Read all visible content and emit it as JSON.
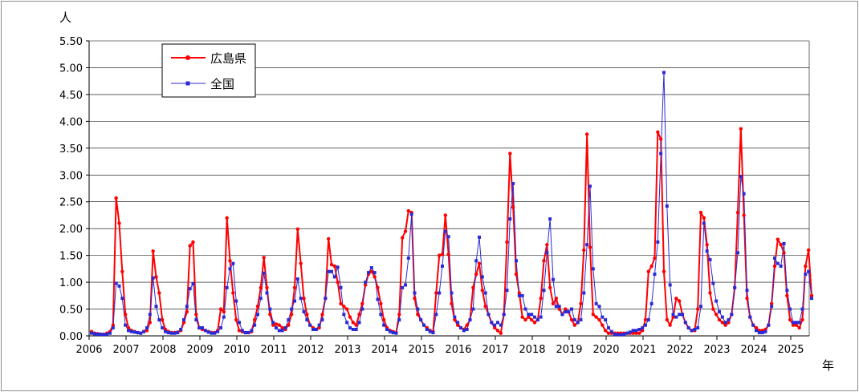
{
  "chart_data": {
    "type": "line",
    "title": "",
    "y_unit": "人",
    "x_unit": "年",
    "ylim": [
      0,
      5.5
    ],
    "y_ticks": [
      "0.00",
      "0.50",
      "1.00",
      "1.50",
      "2.00",
      "2.50",
      "3.00",
      "3.50",
      "4.00",
      "4.50",
      "5.00",
      "5.50"
    ],
    "x_ticks": [
      "2006",
      "2007",
      "2008",
      "2009",
      "2010",
      "2011",
      "2012",
      "2013",
      "2014",
      "2015",
      "2016",
      "2017",
      "2018",
      "2019",
      "2020",
      "2021",
      "2022",
      "2023",
      "2024",
      "2025"
    ],
    "x_start": "2006-01",
    "grid": true,
    "legend_position": "top-left",
    "colors": {
      "hiroshima": "#ff0000",
      "national": "#2b2bd6"
    },
    "series": [
      {
        "name": "広島県",
        "values": [
          0.08,
          0.05,
          0.04,
          0.03,
          0.03,
          0.05,
          0.08,
          0.2,
          2.57,
          2.1,
          1.2,
          0.4,
          0.15,
          0.1,
          0.08,
          0.06,
          0.05,
          0.08,
          0.1,
          0.25,
          1.58,
          1.1,
          0.8,
          0.3,
          0.12,
          0.08,
          0.06,
          0.06,
          0.07,
          0.1,
          0.25,
          0.45,
          1.68,
          1.75,
          0.4,
          0.15,
          0.12,
          0.1,
          0.08,
          0.06,
          0.06,
          0.1,
          0.5,
          0.45,
          2.2,
          1.4,
          0.8,
          0.3,
          0.1,
          0.08,
          0.06,
          0.06,
          0.08,
          0.3,
          0.55,
          0.9,
          1.46,
          0.9,
          0.4,
          0.2,
          0.22,
          0.2,
          0.15,
          0.12,
          0.2,
          0.4,
          0.9,
          1.99,
          1.35,
          0.7,
          0.4,
          0.2,
          0.15,
          0.12,
          0.15,
          0.4,
          0.7,
          1.81,
          1.33,
          1.3,
          1.0,
          0.6,
          0.55,
          0.5,
          0.35,
          0.25,
          0.2,
          0.4,
          0.6,
          0.95,
          1.15,
          1.2,
          1.1,
          0.9,
          0.6,
          0.3,
          0.15,
          0.1,
          0.08,
          0.06,
          0.4,
          1.83,
          1.95,
          2.33,
          2.3,
          0.7,
          0.4,
          0.3,
          0.2,
          0.15,
          0.1,
          0.08,
          0.8,
          1.5,
          1.52,
          2.25,
          1.52,
          0.6,
          0.3,
          0.2,
          0.15,
          0.12,
          0.2,
          0.3,
          0.9,
          1.15,
          1.35,
          0.85,
          0.55,
          0.4,
          0.25,
          0.15,
          0.1,
          0.05,
          0.4,
          1.75,
          3.4,
          2.4,
          1.15,
          0.8,
          0.35,
          0.3,
          0.35,
          0.3,
          0.25,
          0.3,
          0.7,
          1.4,
          1.7,
          0.9,
          0.6,
          0.7,
          0.5,
          0.4,
          0.5,
          0.45,
          0.3,
          0.2,
          0.25,
          0.6,
          1.6,
          3.76,
          1.65,
          0.4,
          0.35,
          0.3,
          0.2,
          0.1,
          0.05,
          0.05,
          0.05,
          0.05,
          0.05,
          0.05,
          0.05,
          0.05,
          0.05,
          0.05,
          0.05,
          0.1,
          0.3,
          1.2,
          1.3,
          1.45,
          3.8,
          3.67,
          1.2,
          0.3,
          0.2,
          0.35,
          0.7,
          0.65,
          0.4,
          0.25,
          0.15,
          0.1,
          0.1,
          0.5,
          2.3,
          2.2,
          1.7,
          0.8,
          0.5,
          0.4,
          0.3,
          0.25,
          0.2,
          0.25,
          0.4,
          0.9,
          2.3,
          3.86,
          2.25,
          0.7,
          0.35,
          0.2,
          0.15,
          0.1,
          0.1,
          0.12,
          0.2,
          0.6,
          1.3,
          1.8,
          1.7,
          1.55,
          0.75,
          0.3,
          0.2,
          0.2,
          0.15,
          0.3,
          1.3,
          1.6,
          0.75
        ],
        "data_labels": []
      },
      {
        "name": "全国",
        "values": [
          0.05,
          0.04,
          0.03,
          0.03,
          0.02,
          0.03,
          0.05,
          0.15,
          0.98,
          0.93,
          0.7,
          0.2,
          0.1,
          0.08,
          0.07,
          0.06,
          0.05,
          0.08,
          0.15,
          0.4,
          1.08,
          0.55,
          0.3,
          0.15,
          0.08,
          0.06,
          0.05,
          0.05,
          0.06,
          0.12,
          0.3,
          0.55,
          0.88,
          0.97,
          0.3,
          0.15,
          0.15,
          0.1,
          0.07,
          0.05,
          0.05,
          0.08,
          0.15,
          0.35,
          0.9,
          1.25,
          1.35,
          0.65,
          0.25,
          0.1,
          0.06,
          0.06,
          0.1,
          0.2,
          0.4,
          0.7,
          1.17,
          0.8,
          0.5,
          0.25,
          0.15,
          0.1,
          0.1,
          0.15,
          0.3,
          0.5,
          0.65,
          1.06,
          0.7,
          0.45,
          0.3,
          0.2,
          0.12,
          0.12,
          0.2,
          0.3,
          0.7,
          1.2,
          1.2,
          1.1,
          1.28,
          0.9,
          0.4,
          0.25,
          0.15,
          0.12,
          0.12,
          0.25,
          0.5,
          1.0,
          1.18,
          1.27,
          1.18,
          0.68,
          0.4,
          0.2,
          0.12,
          0.08,
          0.06,
          0.05,
          0.3,
          0.9,
          0.95,
          1.45,
          2.27,
          0.8,
          0.5,
          0.3,
          0.2,
          0.12,
          0.08,
          0.06,
          0.4,
          0.8,
          1.3,
          1.95,
          1.85,
          0.8,
          0.35,
          0.25,
          0.15,
          0.1,
          0.12,
          0.3,
          0.5,
          1.4,
          1.84,
          1.1,
          0.8,
          0.4,
          0.25,
          0.2,
          0.25,
          0.2,
          0.4,
          0.85,
          2.18,
          2.84,
          1.4,
          0.75,
          0.75,
          0.5,
          0.4,
          0.4,
          0.35,
          0.3,
          0.35,
          0.85,
          1.55,
          2.18,
          1.05,
          0.55,
          0.55,
          0.4,
          0.45,
          0.45,
          0.5,
          0.3,
          0.25,
          0.3,
          0.8,
          1.7,
          2.79,
          1.25,
          0.6,
          0.55,
          0.35,
          0.3,
          0.15,
          0.08,
          0.03,
          0.02,
          0.02,
          0.03,
          0.05,
          0.07,
          0.1,
          0.1,
          0.12,
          0.15,
          0.2,
          0.3,
          0.6,
          1.15,
          1.75,
          3.4,
          4.91,
          2.42,
          0.95,
          0.4,
          0.35,
          0.4,
          0.4,
          0.25,
          0.15,
          0.1,
          0.12,
          0.15,
          0.55,
          2.1,
          1.58,
          1.42,
          0.98,
          0.65,
          0.45,
          0.35,
          0.25,
          0.3,
          0.4,
          0.9,
          1.55,
          2.97,
          2.65,
          0.85,
          0.35,
          0.2,
          0.1,
          0.06,
          0.06,
          0.08,
          0.2,
          0.55,
          1.45,
          1.35,
          1.3,
          1.72,
          0.85,
          0.5,
          0.25,
          0.25,
          0.25,
          0.5,
          1.15,
          1.2,
          0.7
        ],
        "data_labels": []
      }
    ]
  }
}
